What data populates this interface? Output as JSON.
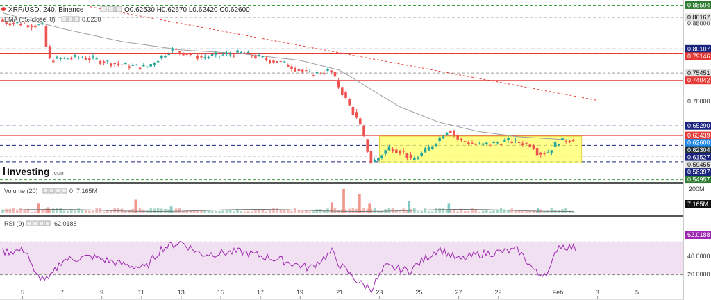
{
  "header": {
    "symbol": "XRP/USD, 240, Binance",
    "ohlc": "O0.62530  H0.62670  L0.62420  C0.62600",
    "ema_label": "EMA (55, close, 0)",
    "ema_value": "0.6230"
  },
  "logo": {
    "text": "Investing",
    "suffix": ".com"
  },
  "volume_panel": {
    "label": "Volume (20)",
    "value_prefix": "0",
    "value": "7.165M",
    "axis_top": "200M",
    "badge": "7.165M"
  },
  "rsi_panel": {
    "label": "RSI (9)",
    "value": "62.0188",
    "badge": "62.0188",
    "axis_labels": [
      "40.0000",
      "20.0000"
    ]
  },
  "colors": {
    "up": "#26a69a",
    "down": "#ef5350",
    "ema": "#9e9e9e",
    "support": "#1a237e",
    "resistance": "#e53935",
    "green_level": "#2e7d32",
    "trend": "#e53935",
    "range_box": "#ffff66",
    "rsi_fill": "#f1e0f1",
    "rsi_line": "#9c27b0"
  },
  "chart_data": {
    "type": "candlestick",
    "y_axis_labels": [
      "0.85000",
      "0.80000",
      "0.75000",
      "0.70000"
    ],
    "ylim": [
      0.545,
      0.895
    ],
    "x_tick_labels": [
      "5",
      "7",
      "9",
      "11",
      "13",
      "15",
      "17",
      "19",
      "21",
      "23",
      "25",
      "27",
      "29",
      "Feb",
      "3",
      "5"
    ],
    "price_levels": [
      {
        "value": "0.88504",
        "kind": "green"
      },
      {
        "value": "0.86167",
        "kind": "gray"
      },
      {
        "value": "0.80107",
        "kind": "blue"
      },
      {
        "value": "0.79146",
        "kind": "red"
      },
      {
        "value": "0.75451",
        "kind": "gray"
      },
      {
        "value": "0.74042",
        "kind": "red"
      },
      {
        "value": "0.65290",
        "kind": "blue"
      },
      {
        "value": "0.63439",
        "kind": "red"
      },
      {
        "value": "0.62600",
        "kind": "price"
      },
      {
        "value": "0.62304",
        "kind": "ema"
      },
      {
        "value": "0.61527",
        "kind": "blue"
      },
      {
        "value": "0.59455",
        "kind": "gray"
      },
      {
        "value": "0.58397",
        "kind": "blue"
      },
      {
        "value": "0.54957",
        "kind": "green"
      }
    ],
    "range_box": {
      "x_start": "23",
      "x_end": "Feb+1.2",
      "y_low": 0.582,
      "y_high": 0.633
    },
    "trendline": {
      "from": [
        0.882,
        "4"
      ],
      "to": [
        0.702,
        "3"
      ]
    },
    "price_key_points": [
      [
        "4",
        0.853
      ],
      [
        "6",
        0.845
      ],
      [
        "6.3",
        0.78
      ],
      [
        "8",
        0.785
      ],
      [
        "10",
        0.77
      ],
      [
        "11.2",
        0.765
      ],
      [
        "12.5",
        0.8
      ],
      [
        "14",
        0.785
      ],
      [
        "16",
        0.793
      ],
      [
        "18",
        0.775
      ],
      [
        "19.5",
        0.752
      ],
      [
        "20.5",
        0.76
      ],
      [
        "21.5",
        0.69
      ],
      [
        "22",
        0.655
      ],
      [
        "22.3",
        0.618
      ],
      [
        "22.6",
        0.58
      ],
      [
        "23.5",
        0.612
      ],
      [
        "24.3",
        0.6
      ],
      [
        "24.6",
        0.585
      ],
      [
        "25.5",
        0.61
      ],
      [
        "26.5",
        0.648
      ],
      [
        "27",
        0.625
      ],
      [
        "28",
        0.615
      ],
      [
        "29.5",
        0.624
      ],
      [
        "30.7",
        0.617
      ],
      [
        "31",
        0.6
      ],
      [
        "31.5",
        0.603
      ],
      [
        "Feb",
        0.623
      ],
      [
        "Feb+0.9",
        0.629
      ]
    ],
    "ema_key_points": [
      [
        "4",
        0.87
      ],
      [
        "7",
        0.84
      ],
      [
        "10",
        0.815
      ],
      [
        "13",
        0.799
      ],
      [
        "16",
        0.792
      ],
      [
        "19",
        0.779
      ],
      [
        "21",
        0.76
      ],
      [
        "22.5",
        0.725
      ],
      [
        "24",
        0.69
      ],
      [
        "26",
        0.66
      ],
      [
        "28",
        0.642
      ],
      [
        "30",
        0.632
      ],
      [
        "Feb+1",
        0.625
      ]
    ],
    "rsi_key_points": [
      [
        "4",
        58
      ],
      [
        "5.2",
        60
      ],
      [
        "5.6",
        30
      ],
      [
        "6.3",
        23
      ],
      [
        "7",
        48
      ],
      [
        "8.5",
        52
      ],
      [
        "10",
        43
      ],
      [
        "11.2",
        38
      ],
      [
        "12",
        62
      ],
      [
        "13",
        70
      ],
      [
        "14",
        55
      ],
      [
        "16",
        58
      ],
      [
        "18",
        48
      ],
      [
        "19.5",
        38
      ],
      [
        "20.6",
        58
      ],
      [
        "21",
        42
      ],
      [
        "22",
        20
      ],
      [
        "22.6",
        13
      ],
      [
        "23.3",
        40
      ],
      [
        "24.5",
        35
      ],
      [
        "26",
        62
      ],
      [
        "27",
        48
      ],
      [
        "28",
        55
      ],
      [
        "30",
        60
      ],
      [
        "31",
        30
      ],
      [
        "31.6",
        35
      ],
      [
        "Feb",
        66
      ],
      [
        "Feb+1.1",
        62
      ]
    ],
    "volume_spikes": [
      [
        "5.8",
        0.35,
        "down"
      ],
      [
        "6.3",
        0.22,
        "down"
      ],
      [
        "10.7",
        0.5,
        "down"
      ],
      [
        "12.5",
        0.25,
        "up"
      ],
      [
        "20.6",
        0.4,
        "down"
      ],
      [
        "21.2",
        0.9,
        "down"
      ],
      [
        "22",
        0.7,
        "down"
      ],
      [
        "22.5",
        0.35,
        "down"
      ],
      [
        "24.5",
        0.45,
        "up"
      ],
      [
        "26.5",
        0.35,
        "up"
      ],
      [
        "31",
        0.2,
        "up"
      ]
    ],
    "rsi_levels": [
      70,
      30
    ]
  }
}
